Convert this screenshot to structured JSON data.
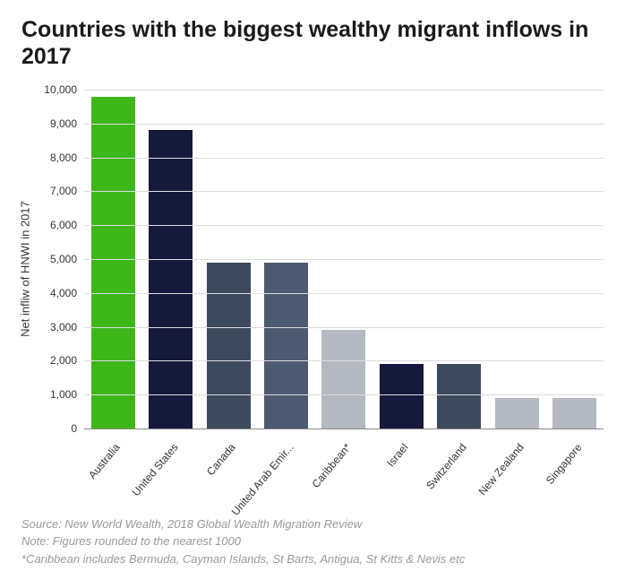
{
  "title": "Countries with the biggest wealthy migrant inflows in 2017",
  "chart": {
    "type": "bar",
    "ylabel": "Net infliw of HNWI in 2017",
    "ylim_max": 10000,
    "yticks": [
      {
        "v": 0,
        "label": "0"
      },
      {
        "v": 1000,
        "label": "1,000"
      },
      {
        "v": 2000,
        "label": "2,000"
      },
      {
        "v": 3000,
        "label": "3,000"
      },
      {
        "v": 4000,
        "label": "4,000"
      },
      {
        "v": 5000,
        "label": "5,000"
      },
      {
        "v": 6000,
        "label": "6,000"
      },
      {
        "v": 7000,
        "label": "7,000"
      },
      {
        "v": 8000,
        "label": "8,000"
      },
      {
        "v": 9000,
        "label": "9,000"
      },
      {
        "v": 10000,
        "label": "10,000"
      }
    ],
    "grid_color": "#ddd",
    "axis_color": "#888",
    "background_color": "#ffffff",
    "bar_width": 0.76,
    "label_fontsize": 12,
    "title_fontsize": 25,
    "series": [
      {
        "label": "Australia",
        "value": 9800,
        "color": "#3fb618"
      },
      {
        "label": "United States",
        "value": 8800,
        "color": "#15193c"
      },
      {
        "label": "Canada",
        "value": 4900,
        "color": "#3d4a5c"
      },
      {
        "label": "United Arab Emir...",
        "value": 4900,
        "color": "#4e5a6f"
      },
      {
        "label": "Caribbean*",
        "value": 2900,
        "color": "#b4b9c2"
      },
      {
        "label": "Israel",
        "value": 1900,
        "color": "#15193c"
      },
      {
        "label": "Switzerland",
        "value": 1900,
        "color": "#3d4a5c"
      },
      {
        "label": "New Zealand",
        "value": 900,
        "color": "#b4b9c2"
      },
      {
        "label": "Singapore",
        "value": 900,
        "color": "#b4b9c2"
      }
    ]
  },
  "footer": {
    "source": "Source: New World Wealth, 2018 Global Wealth Migration Review",
    "note": "Note: Figures rounded to the nearest 1000",
    "caveat": "*Caribbean includes Bermuda, Cayman Islands, St Barts, Antigua, St Kitts & Nevis etc"
  }
}
